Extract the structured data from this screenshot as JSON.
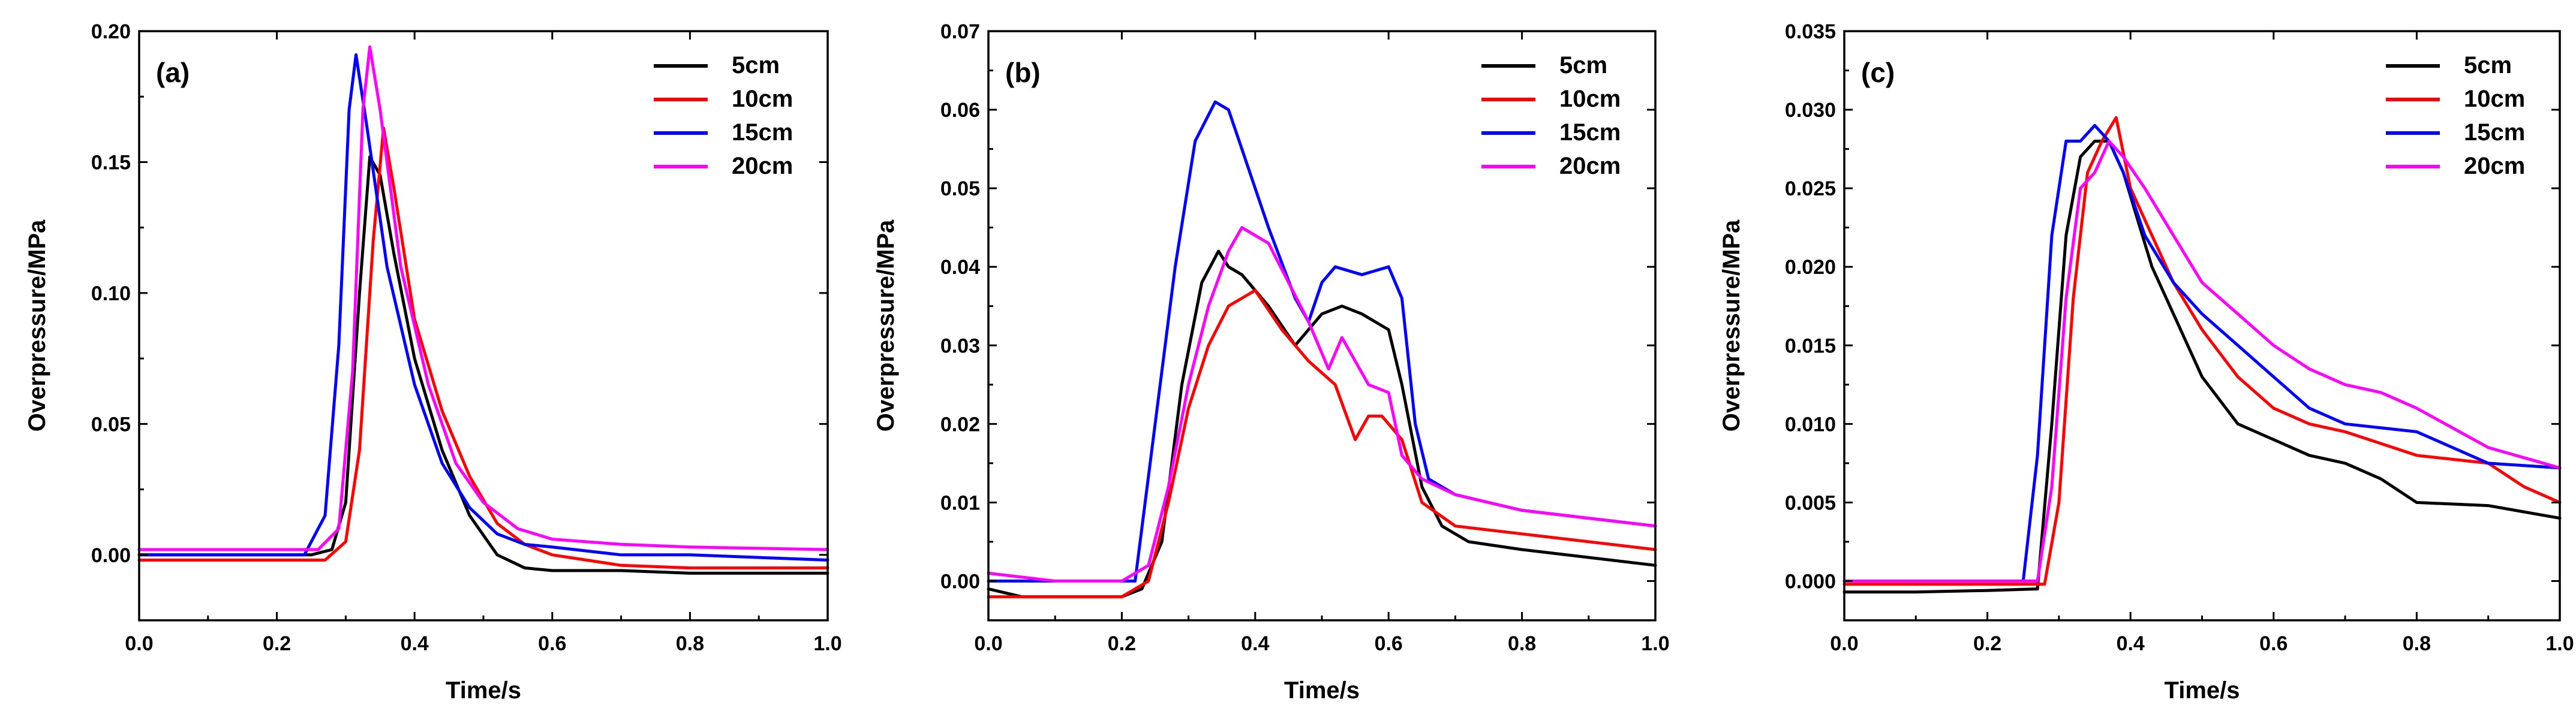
{
  "chart_data": [
    {
      "type": "line",
      "panel_label": "(a)",
      "xlabel": "Time/s",
      "ylabel": "Overpressure/MPa",
      "xlim": [
        0.0,
        1.0
      ],
      "ylim": [
        -0.025,
        0.2
      ],
      "xticks": [
        0.0,
        0.2,
        0.4,
        0.6,
        0.8,
        1.0
      ],
      "yticks": [
        0.0,
        0.05,
        0.1,
        0.15,
        0.2
      ],
      "xtick_labels": [
        "0.0",
        "0.2",
        "0.4",
        "0.6",
        "0.8",
        "1.0"
      ],
      "ytick_labels": [
        "0.00",
        "0.05",
        "0.10",
        "0.15",
        "0.20"
      ],
      "legend_position": "top-right",
      "series": [
        {
          "name": "5cm",
          "color": "#000000",
          "x": [
            0,
            0.25,
            0.28,
            0.3,
            0.32,
            0.335,
            0.35,
            0.37,
            0.4,
            0.44,
            0.48,
            0.52,
            0.56,
            0.6,
            0.7,
            0.8,
            1.0
          ],
          "y": [
            0.0,
            0.0,
            0.002,
            0.02,
            0.1,
            0.152,
            0.145,
            0.115,
            0.075,
            0.04,
            0.015,
            0.0,
            -0.005,
            -0.006,
            -0.006,
            -0.007,
            -0.007
          ]
        },
        {
          "name": "10cm",
          "color": "#ff0000",
          "x": [
            0,
            0.27,
            0.3,
            0.32,
            0.34,
            0.355,
            0.37,
            0.4,
            0.44,
            0.48,
            0.52,
            0.56,
            0.6,
            0.7,
            0.8,
            1.0
          ],
          "y": [
            -0.002,
            -0.002,
            0.005,
            0.04,
            0.12,
            0.163,
            0.14,
            0.09,
            0.055,
            0.03,
            0.012,
            0.004,
            0.0,
            -0.004,
            -0.005,
            -0.005
          ]
        },
        {
          "name": "15cm",
          "color": "#0000ff",
          "x": [
            0,
            0.24,
            0.27,
            0.29,
            0.305,
            0.315,
            0.33,
            0.36,
            0.4,
            0.44,
            0.48,
            0.52,
            0.56,
            0.6,
            0.7,
            0.8,
            1.0
          ],
          "y": [
            0.0,
            0.0,
            0.015,
            0.08,
            0.17,
            0.191,
            0.165,
            0.11,
            0.065,
            0.035,
            0.018,
            0.008,
            0.004,
            0.003,
            0.0,
            0.0,
            -0.002
          ]
        },
        {
          "name": "20cm",
          "color": "#ff00ff",
          "x": [
            0,
            0.26,
            0.29,
            0.31,
            0.325,
            0.335,
            0.35,
            0.38,
            0.42,
            0.46,
            0.5,
            0.55,
            0.6,
            0.7,
            0.8,
            1.0
          ],
          "y": [
            0.002,
            0.002,
            0.01,
            0.07,
            0.17,
            0.194,
            0.17,
            0.11,
            0.065,
            0.035,
            0.02,
            0.01,
            0.006,
            0.004,
            0.003,
            0.002
          ]
        }
      ]
    },
    {
      "type": "line",
      "panel_label": "(b)",
      "xlabel": "Time/s",
      "ylabel": "Overpressure/MPa",
      "xlim": [
        0.0,
        1.0
      ],
      "ylim": [
        -0.005,
        0.07
      ],
      "xticks": [
        0.0,
        0.2,
        0.4,
        0.6,
        0.8,
        1.0
      ],
      "yticks": [
        0.0,
        0.01,
        0.02,
        0.03,
        0.04,
        0.05,
        0.06,
        0.07
      ],
      "xtick_labels": [
        "0.0",
        "0.2",
        "0.4",
        "0.6",
        "0.8",
        "1.0"
      ],
      "ytick_labels": [
        "0.00",
        "0.01",
        "0.02",
        "0.03",
        "0.04",
        "0.05",
        "0.06",
        "0.07"
      ],
      "legend_position": "top-right",
      "series": [
        {
          "name": "5cm",
          "color": "#000000",
          "x": [
            0,
            0.05,
            0.1,
            0.15,
            0.2,
            0.23,
            0.26,
            0.29,
            0.32,
            0.345,
            0.36,
            0.38,
            0.42,
            0.46,
            0.5,
            0.53,
            0.56,
            0.6,
            0.62,
            0.65,
            0.68,
            0.72,
            0.8,
            0.9,
            1.0
          ],
          "y": [
            -0.001,
            -0.002,
            -0.002,
            -0.002,
            -0.002,
            -0.001,
            0.005,
            0.025,
            0.038,
            0.042,
            0.04,
            0.039,
            0.035,
            0.03,
            0.034,
            0.035,
            0.034,
            0.032,
            0.025,
            0.012,
            0.007,
            0.005,
            0.004,
            0.003,
            0.002
          ]
        },
        {
          "name": "10cm",
          "color": "#ff0000",
          "x": [
            0,
            0.1,
            0.2,
            0.24,
            0.27,
            0.3,
            0.33,
            0.36,
            0.38,
            0.4,
            0.44,
            0.48,
            0.52,
            0.55,
            0.57,
            0.59,
            0.62,
            0.65,
            0.7,
            0.8,
            0.9,
            1.0
          ],
          "y": [
            -0.002,
            -0.002,
            -0.002,
            0.0,
            0.01,
            0.022,
            0.03,
            0.035,
            0.036,
            0.037,
            0.032,
            0.028,
            0.025,
            0.018,
            0.021,
            0.021,
            0.018,
            0.01,
            0.007,
            0.006,
            0.005,
            0.004
          ]
        },
        {
          "name": "15cm",
          "color": "#0000ff",
          "x": [
            0,
            0.1,
            0.2,
            0.22,
            0.25,
            0.28,
            0.31,
            0.34,
            0.36,
            0.38,
            0.42,
            0.46,
            0.48,
            0.5,
            0.52,
            0.56,
            0.6,
            0.62,
            0.64,
            0.66,
            0.7,
            0.8,
            0.9,
            1.0
          ],
          "y": [
            0.0,
            0.0,
            0.0,
            0.0,
            0.02,
            0.04,
            0.056,
            0.061,
            0.06,
            0.055,
            0.045,
            0.036,
            0.033,
            0.038,
            0.04,
            0.039,
            0.04,
            0.036,
            0.02,
            0.013,
            0.011,
            0.009,
            0.008,
            0.007
          ]
        },
        {
          "name": "20cm",
          "color": "#ff00ff",
          "x": [
            0,
            0.1,
            0.2,
            0.24,
            0.27,
            0.3,
            0.33,
            0.36,
            0.38,
            0.4,
            0.42,
            0.45,
            0.48,
            0.51,
            0.53,
            0.55,
            0.57,
            0.6,
            0.62,
            0.65,
            0.7,
            0.8,
            0.9,
            1.0
          ],
          "y": [
            0.001,
            0.0,
            0.0,
            0.002,
            0.012,
            0.025,
            0.035,
            0.042,
            0.045,
            0.044,
            0.043,
            0.038,
            0.033,
            0.027,
            0.031,
            0.028,
            0.025,
            0.024,
            0.016,
            0.013,
            0.011,
            0.009,
            0.008,
            0.007
          ]
        }
      ]
    },
    {
      "type": "line",
      "panel_label": "(c)",
      "xlabel": "Time/s",
      "ylabel": "Overpressure/MPa",
      "xlim": [
        0.0,
        1.0
      ],
      "ylim": [
        -0.0025,
        0.035
      ],
      "xticks": [
        0.0,
        0.2,
        0.4,
        0.6,
        0.8,
        1.0
      ],
      "yticks": [
        0.0,
        0.005,
        0.01,
        0.015,
        0.02,
        0.025,
        0.03,
        0.035
      ],
      "xtick_labels": [
        "0.0",
        "0.2",
        "0.4",
        "0.6",
        "0.8",
        "1.0"
      ],
      "ytick_labels": [
        "0.000",
        "0.005",
        "0.010",
        "0.015",
        "0.020",
        "0.025",
        "0.030",
        "0.035"
      ],
      "legend_position": "top-right",
      "series": [
        {
          "name": "5cm",
          "color": "#000000",
          "x": [
            0,
            0.1,
            0.2,
            0.27,
            0.29,
            0.31,
            0.33,
            0.35,
            0.37,
            0.39,
            0.41,
            0.43,
            0.46,
            0.5,
            0.55,
            0.6,
            0.65,
            0.7,
            0.75,
            0.8,
            0.9,
            1.0
          ],
          "y": [
            -0.0007,
            -0.0007,
            -0.0006,
            -0.0005,
            0.01,
            0.022,
            0.027,
            0.028,
            0.028,
            0.026,
            0.023,
            0.02,
            0.017,
            0.013,
            0.01,
            0.009,
            0.008,
            0.0075,
            0.0065,
            0.005,
            0.0048,
            0.004
          ]
        },
        {
          "name": "10cm",
          "color": "#ff0000",
          "x": [
            0,
            0.1,
            0.2,
            0.28,
            0.3,
            0.32,
            0.34,
            0.36,
            0.38,
            0.4,
            0.43,
            0.46,
            0.5,
            0.55,
            0.6,
            0.65,
            0.7,
            0.8,
            0.9,
            0.95,
            1.0
          ],
          "y": [
            -0.0002,
            -0.0002,
            -0.0002,
            -0.0002,
            0.005,
            0.018,
            0.026,
            0.028,
            0.0295,
            0.025,
            0.022,
            0.019,
            0.016,
            0.013,
            0.011,
            0.01,
            0.0095,
            0.008,
            0.0075,
            0.006,
            0.005
          ]
        },
        {
          "name": "15cm",
          "color": "#0000ff",
          "x": [
            0,
            0.1,
            0.2,
            0.25,
            0.27,
            0.29,
            0.31,
            0.33,
            0.35,
            0.37,
            0.39,
            0.42,
            0.46,
            0.5,
            0.55,
            0.6,
            0.65,
            0.7,
            0.8,
            0.9,
            1.0
          ],
          "y": [
            0.0,
            0.0,
            0.0,
            0.0,
            0.008,
            0.022,
            0.028,
            0.028,
            0.029,
            0.028,
            0.026,
            0.022,
            0.019,
            0.017,
            0.015,
            0.013,
            0.011,
            0.01,
            0.0095,
            0.0075,
            0.0072
          ]
        },
        {
          "name": "20cm",
          "color": "#ff00ff",
          "x": [
            0,
            0.1,
            0.2,
            0.27,
            0.29,
            0.31,
            0.33,
            0.35,
            0.37,
            0.39,
            0.42,
            0.46,
            0.5,
            0.55,
            0.6,
            0.65,
            0.7,
            0.75,
            0.8,
            0.9,
            1.0
          ],
          "y": [
            0.0,
            0.0,
            0.0,
            0.0,
            0.006,
            0.018,
            0.025,
            0.026,
            0.028,
            0.027,
            0.025,
            0.022,
            0.019,
            0.017,
            0.015,
            0.0135,
            0.0125,
            0.012,
            0.011,
            0.0085,
            0.0072
          ]
        }
      ]
    }
  ]
}
